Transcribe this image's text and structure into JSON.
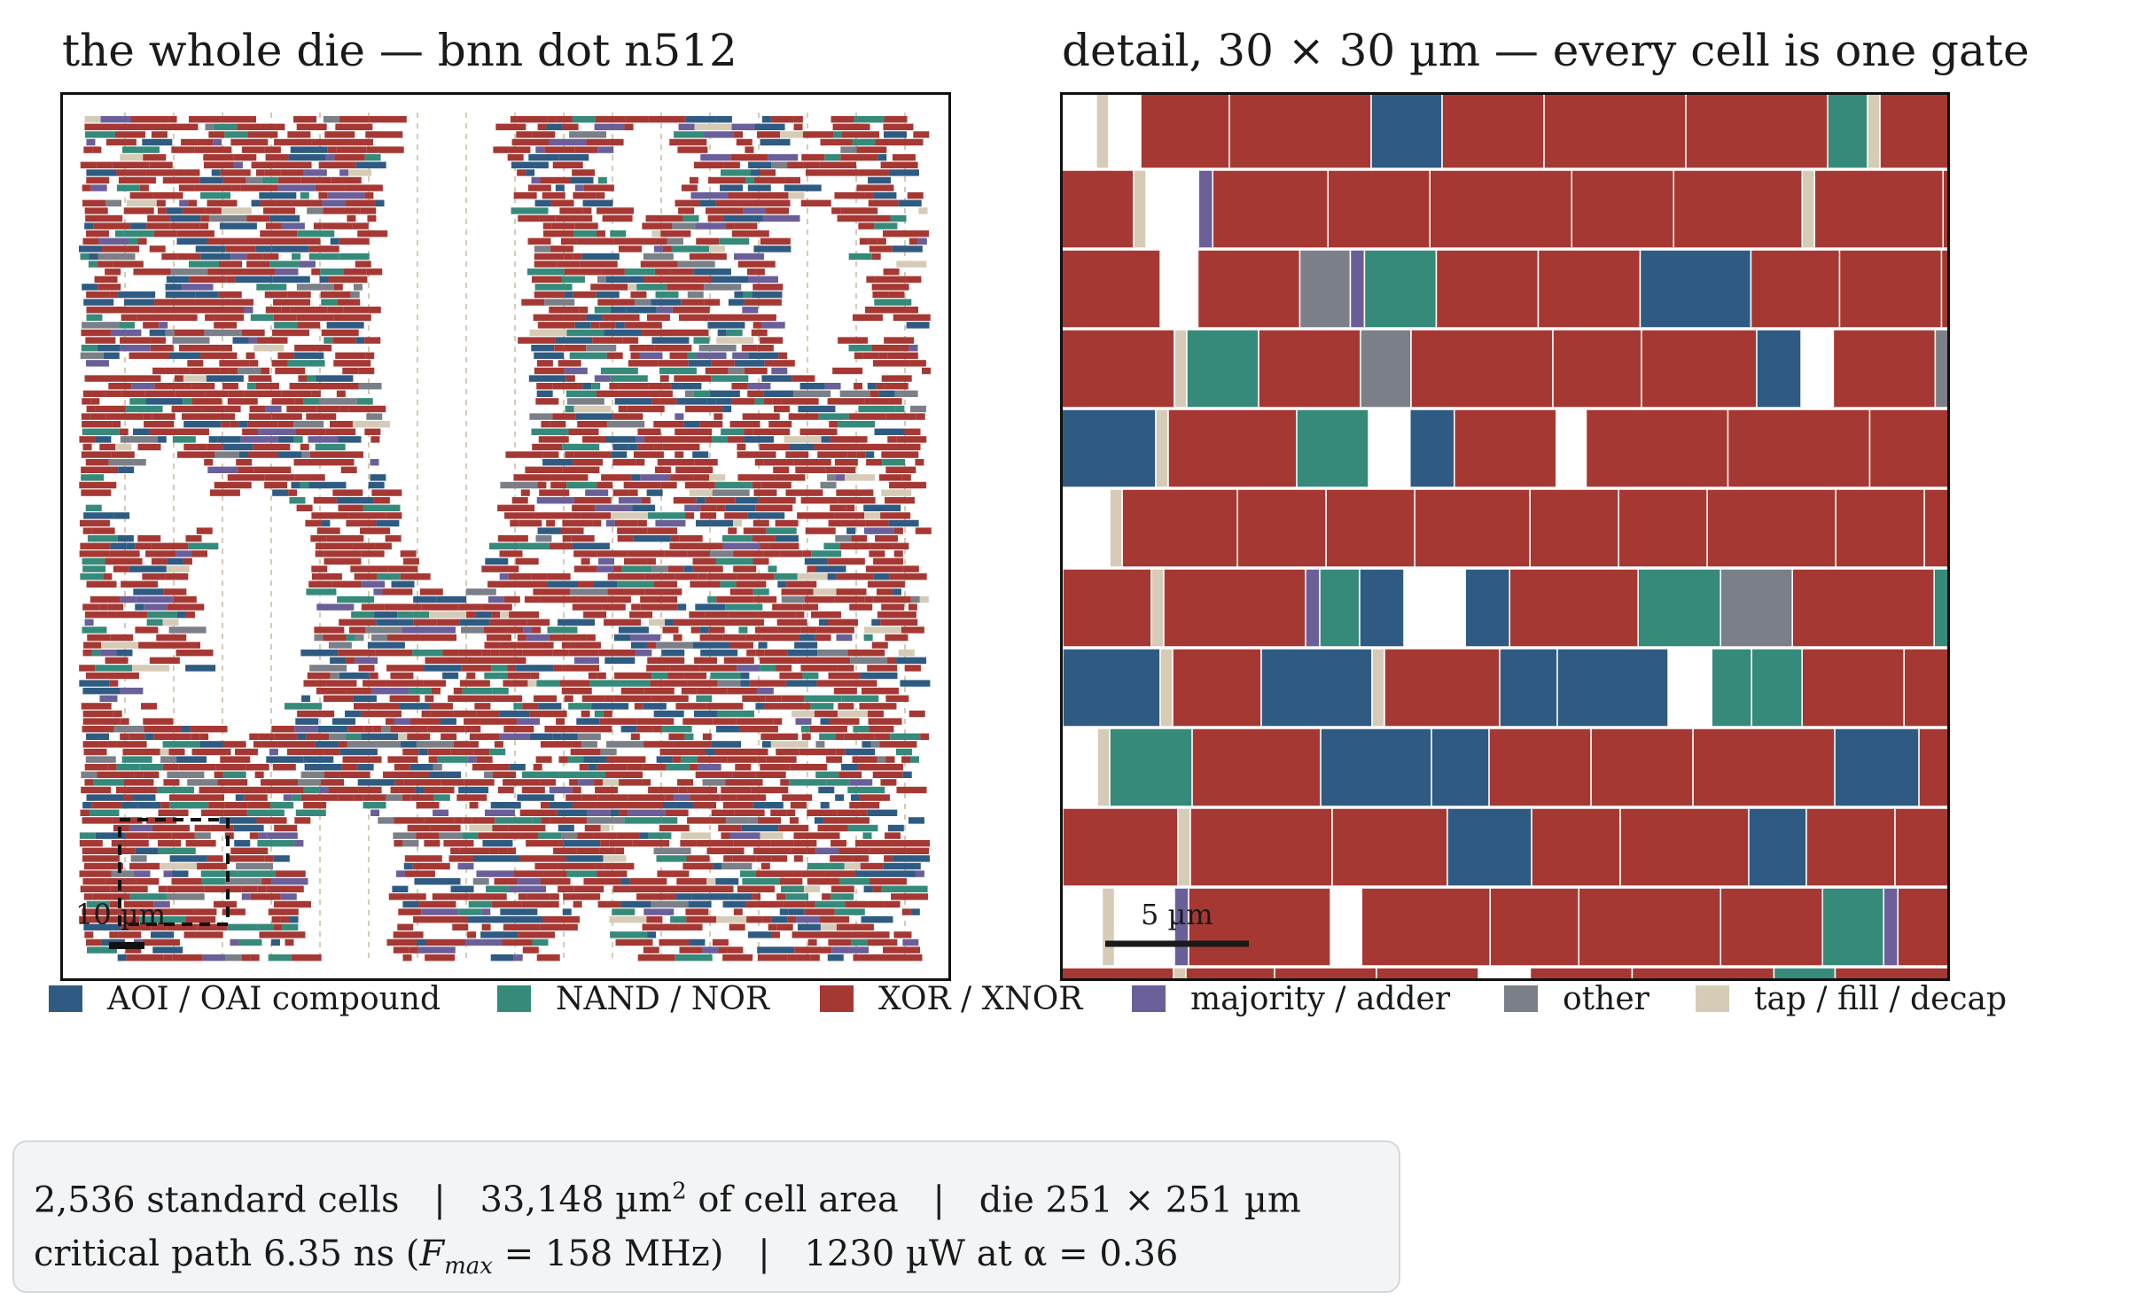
{
  "left_panel": {
    "title": "the whole die — bnn dot n512",
    "scale_label": "10 µm"
  },
  "right_panel": {
    "title": "detail, 30 × 30 µm — every cell is one gate",
    "scale_label": "5 µm"
  },
  "legend": [
    {
      "key": "aoi",
      "label": "AOI / OAI compound",
      "color": "#2f5b82"
    },
    {
      "key": "nand",
      "label": "NAND / NOR",
      "color": "#368a7a"
    },
    {
      "key": "xor",
      "label": "XOR / XNOR",
      "color": "#a63833"
    },
    {
      "key": "maj",
      "label": "majority / adder",
      "color": "#6b5f9a"
    },
    {
      "key": "other",
      "label": "other",
      "color": "#7b7f87"
    },
    {
      "key": "tap",
      "label": "tap / fill / decap",
      "color": "#d6cbb6"
    }
  ],
  "stats": {
    "cells": "2,536 standard cells",
    "area_value": "33,148 µm",
    "area_suffix": " of cell area",
    "die": "die 251 × 251 µm",
    "crit_value": "critical path 6.35 ns (",
    "fmax_symbol": "F",
    "fmax_sub": "max",
    "fmax_value": " = 158 MHz)",
    "power": "1230 µW at α = 0.36",
    "separator": "|",
    "sup2": "2"
  }
}
